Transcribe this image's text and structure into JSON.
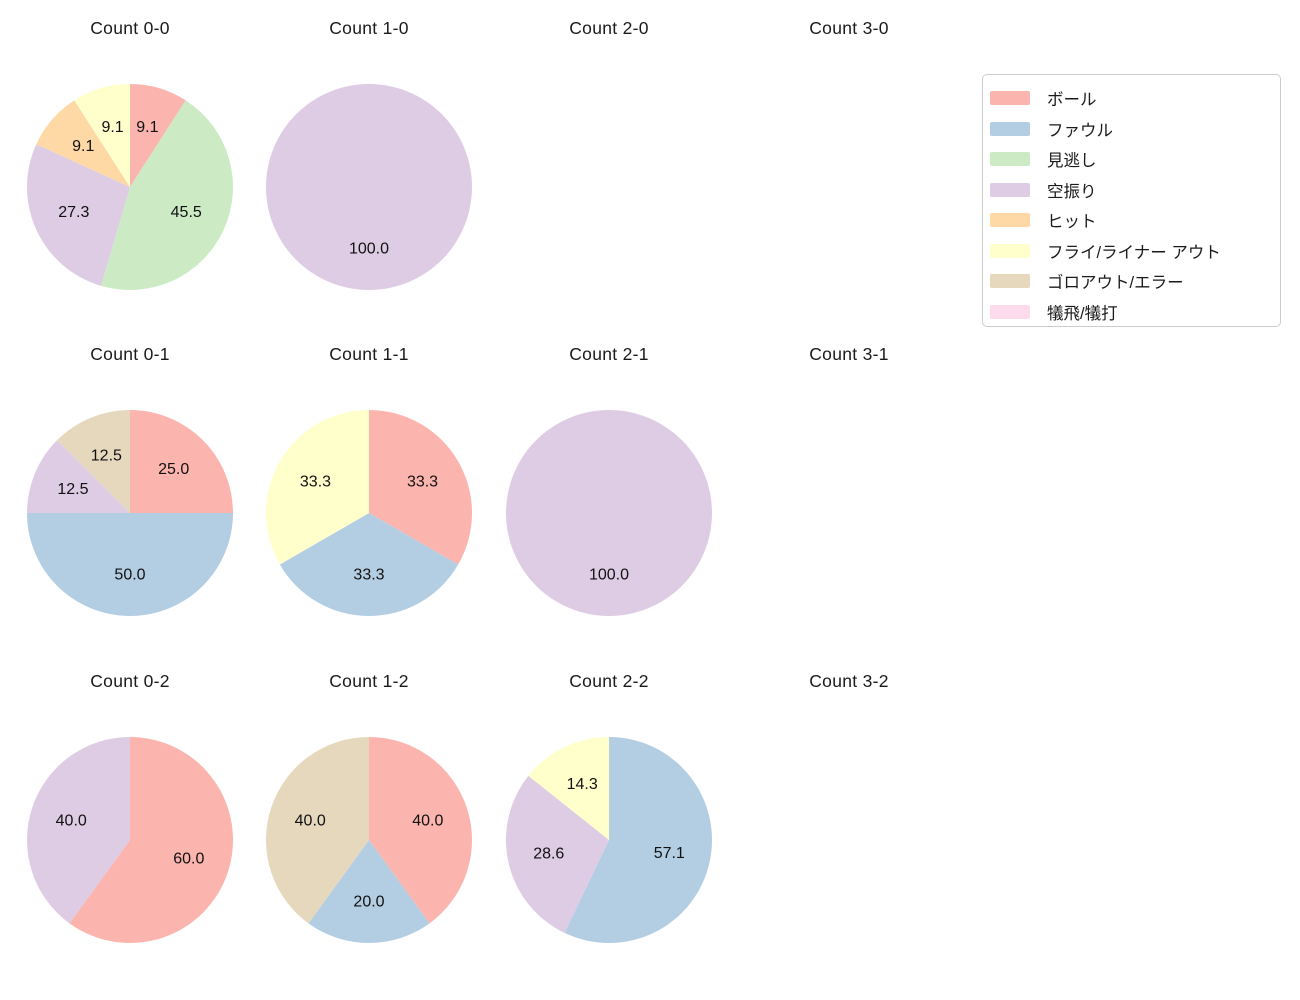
{
  "figure": {
    "background": "#ffffff",
    "text_color": "#1a1a1a"
  },
  "legend": {
    "position": "top-right",
    "border_color": "#cccccc",
    "items": [
      {
        "label": "ボール",
        "color": "#fbb4ae"
      },
      {
        "label": "ファウル",
        "color": "#b3cde3"
      },
      {
        "label": "見逃し",
        "color": "#ccebc5"
      },
      {
        "label": "空振り",
        "color": "#decbe4"
      },
      {
        "label": "ヒット",
        "color": "#fed9a6"
      },
      {
        "label": "フライ/ライナー アウト",
        "color": "#ffffcc"
      },
      {
        "label": "ゴロアウト/エラー",
        "color": "#e5d8bd"
      },
      {
        "label": "犠飛/犠打",
        "color": "#fddaec"
      }
    ]
  },
  "chart_data": [
    {
      "type": "pie",
      "title": "Count 0-0",
      "start_angle": "top",
      "direction": "clockwise",
      "slices": [
        {
          "label": "ボール",
          "value": 9.1
        },
        {
          "label": "見逃し",
          "value": 45.5
        },
        {
          "label": "空振り",
          "value": 27.3
        },
        {
          "label": "ヒット",
          "value": 9.1
        },
        {
          "label": "フライ/ライナー アウト",
          "value": 9.1
        }
      ]
    },
    {
      "type": "pie",
      "title": "Count 1-0",
      "start_angle": "top",
      "direction": "clockwise",
      "slices": [
        {
          "label": "空振り",
          "value": 100.0
        }
      ]
    },
    {
      "type": "pie",
      "title": "Count 2-0",
      "slices": []
    },
    {
      "type": "pie",
      "title": "Count 3-0",
      "slices": []
    },
    {
      "type": "pie",
      "title": "Count 0-1",
      "start_angle": "top",
      "direction": "clockwise",
      "slices": [
        {
          "label": "ボール",
          "value": 25.0
        },
        {
          "label": "ファウル",
          "value": 50.0
        },
        {
          "label": "空振り",
          "value": 12.5
        },
        {
          "label": "ゴロアウト/エラー",
          "value": 12.5
        }
      ]
    },
    {
      "type": "pie",
      "title": "Count 1-1",
      "start_angle": "top",
      "direction": "clockwise",
      "slices": [
        {
          "label": "ボール",
          "value": 33.3
        },
        {
          "label": "ファウル",
          "value": 33.3
        },
        {
          "label": "フライ/ライナー アウト",
          "value": 33.3
        }
      ]
    },
    {
      "type": "pie",
      "title": "Count 2-1",
      "start_angle": "top",
      "direction": "clockwise",
      "slices": [
        {
          "label": "空振り",
          "value": 100.0
        }
      ]
    },
    {
      "type": "pie",
      "title": "Count 3-1",
      "slices": []
    },
    {
      "type": "pie",
      "title": "Count 0-2",
      "start_angle": "top",
      "direction": "clockwise",
      "slices": [
        {
          "label": "ボール",
          "value": 60.0
        },
        {
          "label": "空振り",
          "value": 40.0
        }
      ]
    },
    {
      "type": "pie",
      "title": "Count 1-2",
      "start_angle": "top",
      "direction": "clockwise",
      "slices": [
        {
          "label": "ボール",
          "value": 40.0
        },
        {
          "label": "ファウル",
          "value": 20.0
        },
        {
          "label": "ゴロアウト/エラー",
          "value": 40.0
        }
      ]
    },
    {
      "type": "pie",
      "title": "Count 2-2",
      "start_angle": "top",
      "direction": "clockwise",
      "slices": [
        {
          "label": "ファウル",
          "value": 57.1
        },
        {
          "label": "空振り",
          "value": 28.6
        },
        {
          "label": "フライ/ライナー アウト",
          "value": 14.3
        }
      ]
    },
    {
      "type": "pie",
      "title": "Count 3-2",
      "slices": []
    }
  ]
}
